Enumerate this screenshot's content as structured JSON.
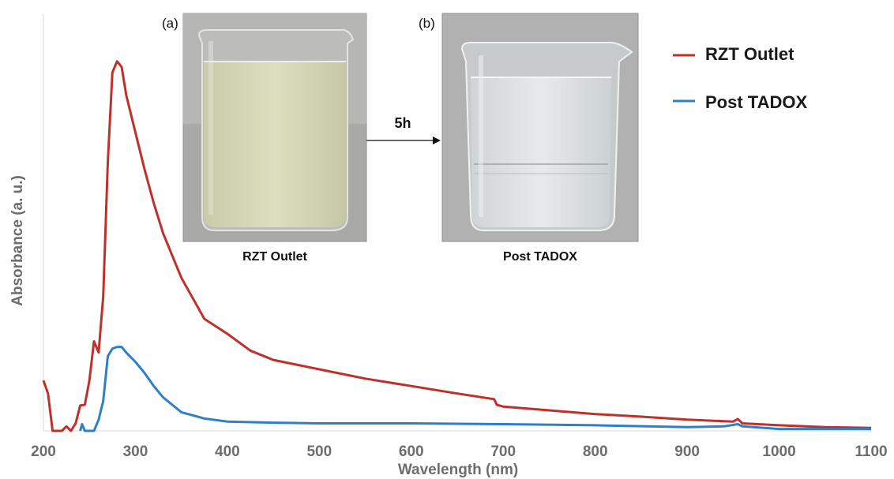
{
  "chart_data": {
    "type": "line",
    "xlabel": "Wavelength (nm)",
    "ylabel": "Absorbance (a. u.)",
    "xlim": [
      200,
      1100
    ],
    "ylim": [
      0,
      1
    ],
    "xticks": [
      200,
      300,
      400,
      500,
      600,
      700,
      800,
      900,
      1000,
      1100
    ],
    "show_yticks": false,
    "grid": false,
    "legend_position": "top-right",
    "series": [
      {
        "name": "RZT Outlet",
        "color": "#c0302a",
        "x": [
          200,
          205,
          210,
          220,
          225,
          230,
          235,
          240,
          245,
          250,
          255,
          260,
          265,
          270,
          275,
          280,
          285,
          290,
          300,
          310,
          320,
          330,
          340,
          350,
          375,
          400,
          425,
          450,
          500,
          550,
          600,
          650,
          690,
          693,
          700,
          750,
          800,
          850,
          900,
          950,
          955,
          960,
          1000,
          1050,
          1100
        ],
        "y": [
          0.135,
          0.1,
          0.0,
          0.0,
          0.012,
          0.0,
          0.02,
          0.068,
          0.07,
          0.135,
          0.24,
          0.21,
          0.36,
          0.72,
          0.96,
          0.99,
          0.975,
          0.9,
          0.8,
          0.7,
          0.61,
          0.53,
          0.47,
          0.41,
          0.3,
          0.26,
          0.215,
          0.19,
          0.165,
          0.14,
          0.12,
          0.1,
          0.085,
          0.07,
          0.065,
          0.055,
          0.045,
          0.038,
          0.03,
          0.025,
          0.032,
          0.02,
          0.015,
          0.01,
          0.008
        ]
      },
      {
        "name": "Post TADOX",
        "color": "#2f7ec8",
        "x": [
          240,
          242,
          245,
          250,
          255,
          260,
          265,
          270,
          275,
          280,
          285,
          290,
          300,
          310,
          320,
          330,
          340,
          350,
          375,
          400,
          450,
          500,
          600,
          700,
          800,
          900,
          940,
          955,
          960,
          1000,
          1050,
          1100
        ],
        "y": [
          0.0,
          0.018,
          0.0,
          0.0,
          0.0,
          0.03,
          0.08,
          0.2,
          0.22,
          0.225,
          0.225,
          0.21,
          0.185,
          0.155,
          0.12,
          0.09,
          0.07,
          0.05,
          0.033,
          0.025,
          0.022,
          0.02,
          0.02,
          0.018,
          0.015,
          0.01,
          0.012,
          0.018,
          0.012,
          0.005,
          0.005,
          0.005
        ]
      }
    ]
  },
  "inset": {
    "left_letter": "(a)",
    "right_letter": "(b)",
    "left_caption": "RZT Outlet",
    "right_caption": "Post TADOX",
    "arrow_label": "5h",
    "left_liquid_color": "#d3d6b3",
    "right_liquid_color": "#d7dde0"
  }
}
